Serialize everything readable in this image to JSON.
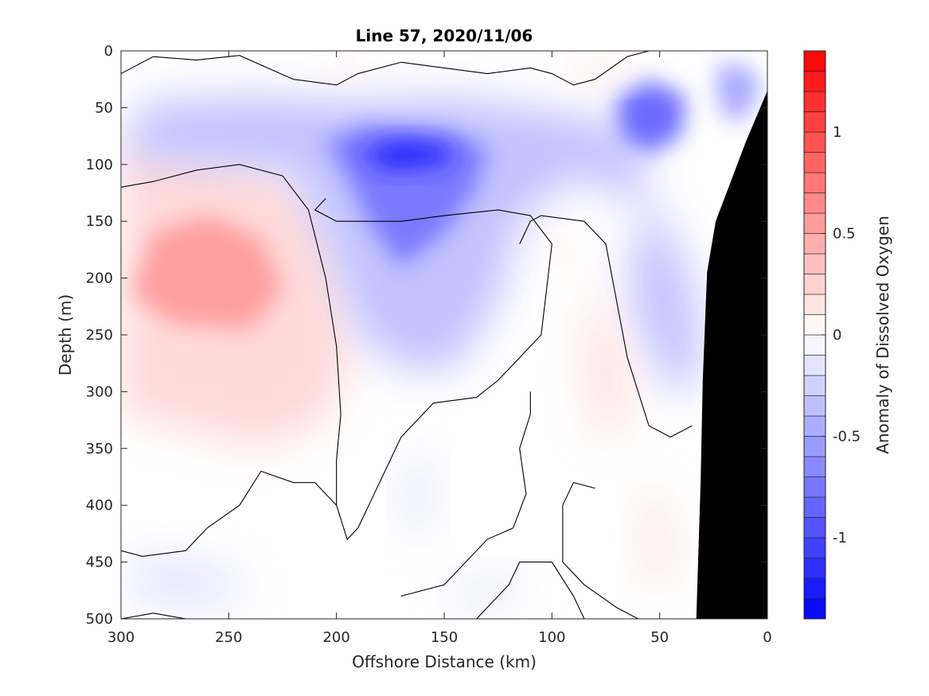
{
  "chart_data": {
    "type": "contour",
    "title": "Line 57, 2020/11/06",
    "xlabel": "Offshore Distance (km)",
    "ylabel": "Depth (m)",
    "colorbar_label": "Anomaly of Dissolved Oxygen",
    "x_range": [
      300,
      0
    ],
    "y_range": [
      0,
      500
    ],
    "x_reversed": true,
    "y_reversed": true,
    "x_ticks": [
      "300",
      "250",
      "200",
      "150",
      "100",
      "50",
      "0"
    ],
    "y_ticks": [
      "0",
      "50",
      "100",
      "150",
      "200",
      "250",
      "300",
      "350",
      "400",
      "450",
      "500"
    ],
    "colorbar_ticks": [
      "1",
      "0.5",
      "0",
      "-0.5",
      "-1"
    ],
    "colorbar_range": [
      -1.4,
      1.4
    ],
    "colorbar_levels": 28,
    "colors": {
      "positive": "#ff0000",
      "negative": "#0000ff",
      "zero": "#ffffff",
      "bathymetry": "#000000",
      "contour": "#000000"
    },
    "features": [
      {
        "kind": "positive",
        "x": 265,
        "y": 185,
        "peak": 0.55
      },
      {
        "kind": "negative",
        "x": 170,
        "y": 90,
        "peak": -1.2
      },
      {
        "kind": "negative",
        "x": 52,
        "y": 55,
        "peak": -0.85
      },
      {
        "kind": "negative",
        "x": 12,
        "y": 40,
        "peak": -0.6
      },
      {
        "kind": "positive",
        "x": 100,
        "y": 210,
        "peak": 0.25
      },
      {
        "kind": "positive",
        "x": 85,
        "y": 310,
        "peak": 0.12
      }
    ],
    "bathymetry": [
      {
        "x": 0,
        "depth": 35
      },
      {
        "x": 10,
        "depth": 80
      },
      {
        "x": 18,
        "depth": 120
      },
      {
        "x": 24,
        "depth": 150
      },
      {
        "x": 28,
        "depth": 195
      },
      {
        "x": 30,
        "depth": 290
      },
      {
        "x": 31,
        "depth": 380
      },
      {
        "x": 33,
        "depth": 500
      }
    ],
    "grid": false
  }
}
